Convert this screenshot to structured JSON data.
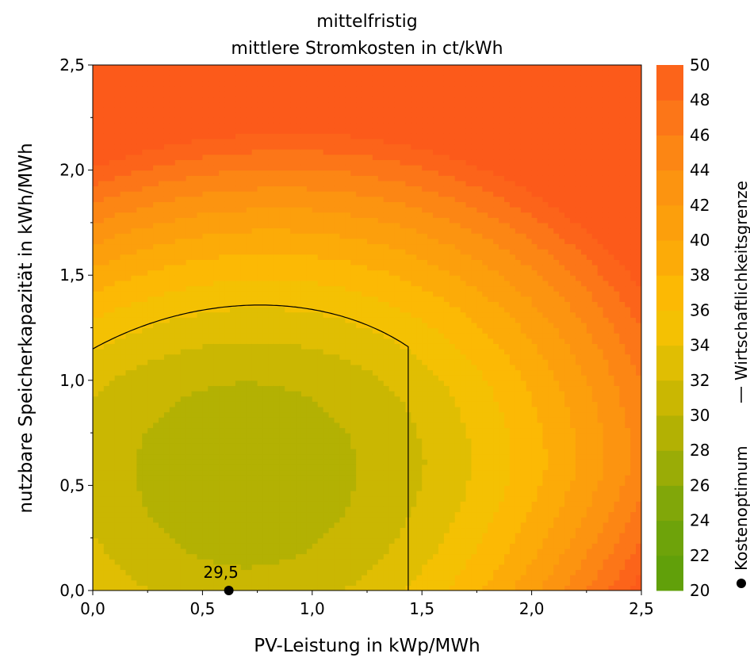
{
  "chart_data": {
    "type": "heatmap",
    "title": "mittelfristig",
    "subtitle": "mittlere Stromkosten in ct/kWh",
    "xlabel": "PV-Leistung in kWp/MWh",
    "ylabel": "nutzbare Speicherkapazität in kWh/MWh",
    "xlim": [
      0,
      2.5
    ],
    "ylim": [
      0,
      2.5
    ],
    "x_ticks": [
      "0,0",
      "0,5",
      "1,0",
      "1,5",
      "2,0",
      "2,5"
    ],
    "y_ticks": [
      "0,0",
      "0,5",
      "1,0",
      "1,5",
      "2,0",
      "2,5"
    ],
    "colorbar": {
      "min": 20,
      "max": 50,
      "step": 2,
      "tick_labels": [
        "20",
        "22",
        "24",
        "26",
        "28",
        "30",
        "32",
        "34",
        "36",
        "38",
        "40",
        "42",
        "44",
        "46",
        "48",
        "50"
      ]
    },
    "color_scale": [
      {
        "value": 20,
        "color": "#5a9e0a"
      },
      {
        "value": 24,
        "color": "#75a40a"
      },
      {
        "value": 28,
        "color": "#a6ae04"
      },
      {
        "value": 30,
        "color": "#c0b402"
      },
      {
        "value": 32,
        "color": "#d4ba02"
      },
      {
        "value": 34,
        "color": "#ecc203"
      },
      {
        "value": 36,
        "color": "#fcc002"
      },
      {
        "value": 40,
        "color": "#fca40a"
      },
      {
        "value": 44,
        "color": "#fc8e12"
      },
      {
        "value": 48,
        "color": "#fc6e1a"
      },
      {
        "value": 50,
        "color": "#fc5a1a"
      }
    ],
    "optimum": {
      "x": 0.62,
      "y": 0.0,
      "value": 29.5,
      "label": "29,5"
    },
    "boundary_level": 34.2,
    "legend": {
      "boundary_label": "Wirtschaftlichkeitsgrenze",
      "optimum_label": "Kostenoptimum"
    }
  }
}
